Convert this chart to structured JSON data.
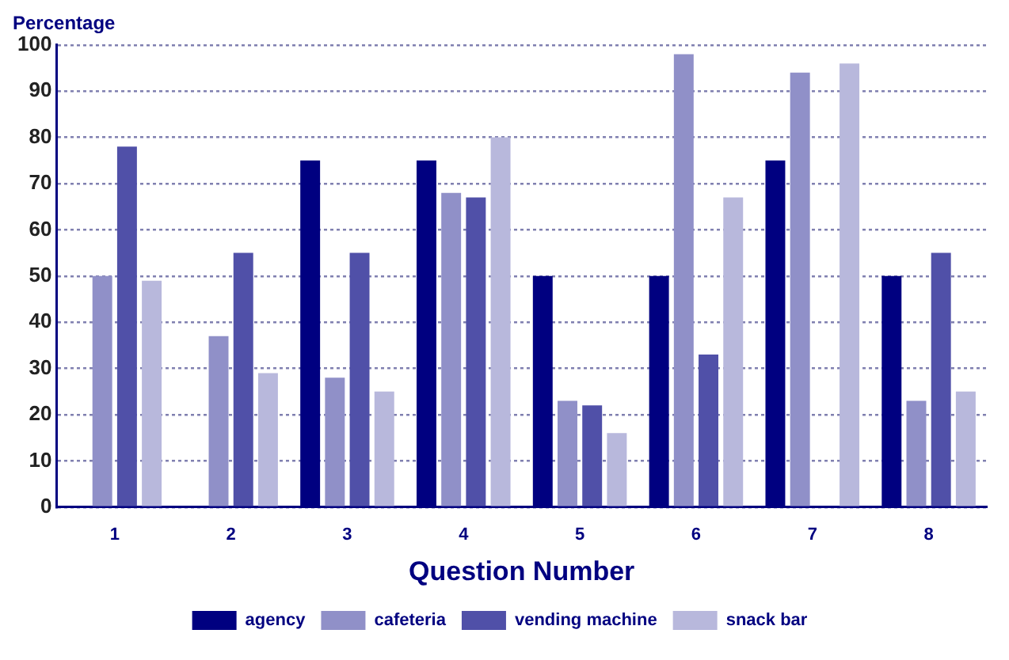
{
  "chart_data": {
    "type": "bar",
    "ylabel": "Percentage",
    "xlabel": "Question Number",
    "categories": [
      "1",
      "2",
      "3",
      "4",
      "5",
      "6",
      "7",
      "8"
    ],
    "series": [
      {
        "name": "agency",
        "color": "#000080",
        "values": [
          0,
          0,
          75,
          75,
          50,
          50,
          75,
          50
        ]
      },
      {
        "name": "cafeteria",
        "color": "#9090c8",
        "values": [
          50,
          37,
          28,
          68,
          23,
          98,
          94,
          23
        ]
      },
      {
        "name": "vending machine",
        "color": "#5050a8",
        "values": [
          78,
          55,
          55,
          67,
          22,
          33,
          0,
          55
        ]
      },
      {
        "name": "snack bar",
        "color": "#b8b8dc",
        "values": [
          49,
          29,
          25,
          80,
          16,
          67,
          96,
          25
        ]
      }
    ],
    "ylim": [
      0,
      100
    ],
    "yticks": [
      0,
      10,
      20,
      30,
      40,
      50,
      60,
      70,
      80,
      90,
      100
    ],
    "grid": "y",
    "legend": "bottom"
  }
}
